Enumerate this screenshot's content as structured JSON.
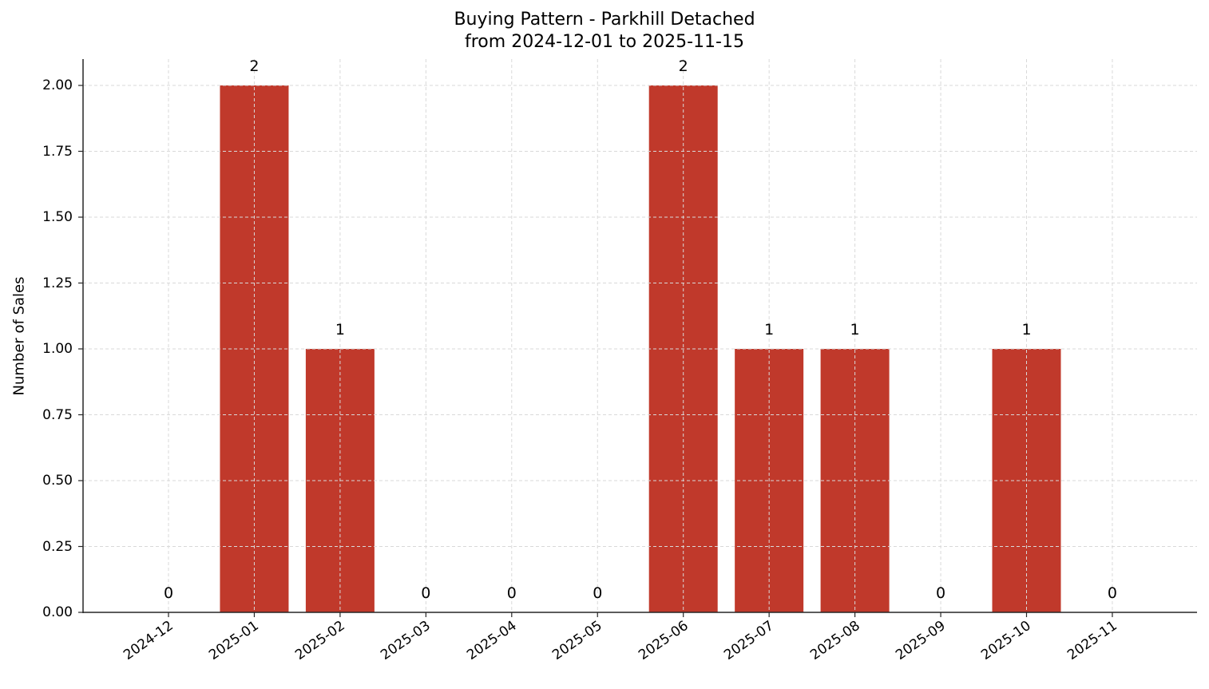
{
  "chart_data": {
    "type": "bar",
    "title": "Buying Pattern - Parkhill Detached",
    "subtitle": "from 2024-12-01 to 2025-11-15",
    "xlabel": "",
    "ylabel": "Number of Sales",
    "categories": [
      "2024-12",
      "2025-01",
      "2025-02",
      "2025-03",
      "2025-04",
      "2025-05",
      "2025-06",
      "2025-07",
      "2025-08",
      "2025-09",
      "2025-10",
      "2025-11"
    ],
    "values": [
      0,
      2,
      1,
      0,
      0,
      0,
      2,
      1,
      1,
      0,
      1,
      0
    ],
    "data_labels": [
      "0",
      "2",
      "1",
      "0",
      "0",
      "0",
      "2",
      "1",
      "1",
      "0",
      "1",
      "0"
    ],
    "ylim": [
      0,
      2.1
    ],
    "yticks": [
      "0.00",
      "0.25",
      "0.50",
      "0.75",
      "1.00",
      "1.25",
      "1.50",
      "1.75",
      "2.00"
    ],
    "grid": true,
    "legend": null,
    "bar_color": "#c0392b"
  },
  "colors": {
    "bar": "#c0392b",
    "grid": "#d9d9d9",
    "axis": "#262626"
  }
}
